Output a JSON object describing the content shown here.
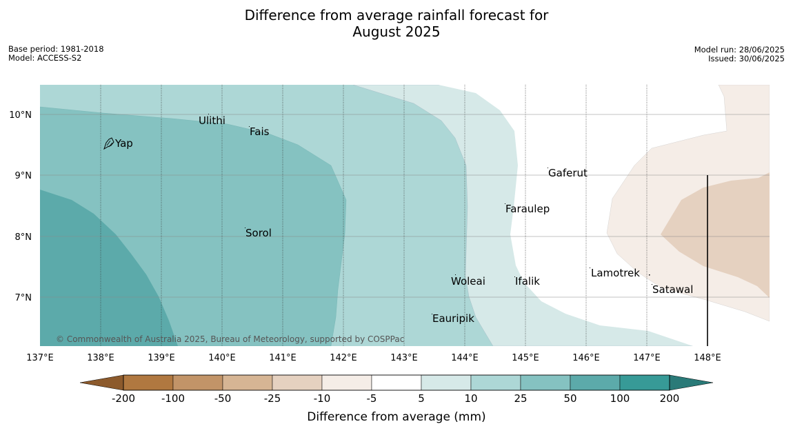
{
  "title": {
    "line1": "Difference from average rainfall forecast for",
    "line2": "August 2025"
  },
  "meta": {
    "base_period": "Base period: 1981-2018",
    "model": "Model: ACCESS-S2",
    "model_run": "Model run: 28/06/2025",
    "issued": "Issued: 30/06/2025"
  },
  "map": {
    "lon_ticks": [
      "137°E",
      "138°E",
      "139°E",
      "140°E",
      "141°E",
      "142°E",
      "143°E",
      "144°E",
      "145°E",
      "146°E",
      "147°E",
      "148°E"
    ],
    "lat_ticks": [
      "10°N",
      "9°N",
      "8°N",
      "7°N"
    ],
    "places": [
      "Ulithi",
      "Fais",
      "Yap",
      "Gaferut",
      "Faraulep",
      "Sorol",
      "Woleai",
      "Ifalik",
      "Lamotrek",
      "Satawal",
      "Eauripik"
    ],
    "copyright": "© Commonwealth of Australia 2025, Bureau of Meteorology, supported by COSPPac"
  },
  "legend": {
    "title": "Difference from average (mm)",
    "labels": [
      "-200",
      "-100",
      "-50",
      "-25",
      "-10",
      "-5",
      "5",
      "10",
      "25",
      "50",
      "100",
      "200"
    ],
    "colors": [
      "#8c5a2c",
      "#b07840",
      "#c29468",
      "#d6b594",
      "#e5d1c0",
      "#f5ede7",
      "#ffffff",
      "#d6e9e8",
      "#add7d6",
      "#85c2c1",
      "#5caaaa",
      "#379a97",
      "#2a7a78"
    ]
  }
}
